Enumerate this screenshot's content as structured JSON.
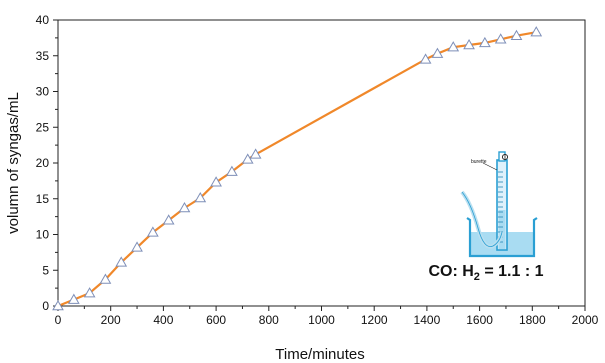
{
  "chart_data": {
    "type": "line",
    "xlabel": "Time/minutes",
    "ylabel": "volumn of syngas/mL",
    "xlim": [
      0,
      2000
    ],
    "ylim": [
      0,
      40
    ],
    "x_ticks": [
      0,
      200,
      400,
      600,
      800,
      1000,
      1200,
      1400,
      1600,
      1800,
      2000
    ],
    "y_ticks": [
      0,
      5,
      10,
      15,
      20,
      25,
      30,
      35,
      40
    ],
    "grid": false,
    "series": [
      {
        "line_color": "#f0882a",
        "marker": "triangle-open",
        "marker_color": "#7e8fb8",
        "x": [
          0,
          60,
          120,
          180,
          240,
          300,
          360,
          420,
          480,
          540,
          600,
          660,
          720,
          750,
          1395,
          1440,
          1500,
          1560,
          1620,
          1680,
          1740,
          1815
        ],
        "y": [
          0,
          0.9,
          1.8,
          3.7,
          6.1,
          8.2,
          10.3,
          12.0,
          13.7,
          15.1,
          17.3,
          18.8,
          20.5,
          21.2,
          34.5,
          35.3,
          36.2,
          36.5,
          36.8,
          37.3,
          37.8,
          38.3
        ]
      }
    ],
    "inset": {
      "burette_label": "burette",
      "ratio_text": {
        "prefix": "CO: H",
        "subscript": "2",
        "suffix": " = 1.1 : 1"
      }
    }
  }
}
